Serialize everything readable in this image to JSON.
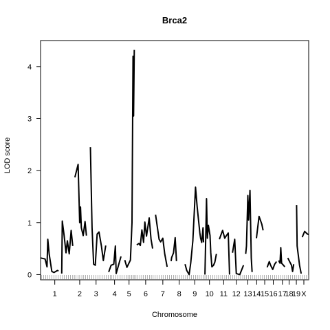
{
  "chart_data": {
    "type": "line",
    "title": "Brca2",
    "xlabel": "Chromosome",
    "ylabel": "LOD score",
    "ylim": [
      -0.1,
      4.5
    ],
    "yticks": [
      0,
      1,
      2,
      3,
      4
    ],
    "xlim": [
      0,
      100
    ],
    "grid": false,
    "chromosomes": [
      {
        "name": "1",
        "range": [
          1,
          10
        ],
        "label_pos": 5.3
      },
      {
        "name": "2",
        "range": [
          11,
          18
        ],
        "label_pos": 14.6
      },
      {
        "name": "3",
        "range": [
          19,
          25
        ],
        "label_pos": 20.7
      },
      {
        "name": "4",
        "range": [
          26,
          33
        ],
        "label_pos": 27.6
      },
      {
        "name": "5",
        "range": [
          34,
          38
        ],
        "label_pos": 33.0
      },
      {
        "name": "6",
        "range": [
          39,
          44
        ],
        "label_pos": 39.2
      },
      {
        "name": "7",
        "range": [
          45,
          51
        ],
        "label_pos": 45.6
      },
      {
        "name": "8",
        "range": [
          52,
          56
        ],
        "label_pos": 51.7
      },
      {
        "name": "9",
        "range": [
          57,
          60
        ],
        "label_pos": 57.5
      },
      {
        "name": "10",
        "range": [
          61,
          66
        ],
        "label_pos": 63.0
      },
      {
        "name": "11",
        "range": [
          67,
          70
        ],
        "label_pos": 68.3
      },
      {
        "name": "12",
        "range": [
          71,
          75
        ],
        "label_pos": 73.0
      },
      {
        "name": "13",
        "range": [
          75,
          78
        ],
        "label_pos": 77.3
      },
      {
        "name": "14",
        "range": [
          78,
          82
        ],
        "label_pos": 80.6
      },
      {
        "name": "15",
        "range": [
          82,
          85
        ],
        "label_pos": 83.6
      },
      {
        "name": "16",
        "range": [
          85,
          89
        ],
        "label_pos": 86.8
      },
      {
        "name": "17",
        "range": [
          89,
          93
        ],
        "label_pos": 90.2
      },
      {
        "name": "18",
        "range": [
          92,
          95
        ],
        "label_pos": 92.7
      },
      {
        "name": "19",
        "range": [
          95,
          97
        ],
        "label_pos": 95.4
      },
      {
        "name": "X",
        "range": [
          97,
          100
        ],
        "label_pos": 98.2
      }
    ],
    "series": [
      {
        "values": [
          [
            0.0,
            0.32
          ],
          [
            1.7,
            0.3
          ],
          [
            2.4,
            0.15
          ],
          [
            2.7,
            0.68
          ],
          [
            3.2,
            0.4
          ],
          [
            4.2,
            0.06
          ],
          [
            5.0,
            0.04
          ],
          [
            6.3,
            0.08
          ],
          [
            6.7,
            0.07
          ]
        ]
      },
      {
        "values": [
          [
            7.9,
            0.02
          ],
          [
            8.1,
            1.03
          ],
          [
            8.8,
            0.75
          ],
          [
            9.5,
            0.42
          ],
          [
            10.0,
            0.65
          ],
          [
            10.7,
            0.4
          ],
          [
            11.4,
            0.85
          ],
          [
            12.0,
            0.55
          ]
        ]
      },
      {
        "values": [
          [
            12.8,
            1.87
          ],
          [
            14.0,
            2.12
          ],
          [
            14.6,
            1.0
          ],
          [
            14.9,
            1.3
          ],
          [
            15.2,
            0.9
          ],
          [
            15.9,
            0.75
          ],
          [
            16.6,
            1.02
          ],
          [
            17.1,
            0.75
          ]
        ]
      },
      {
        "values": [
          [
            18.6,
            2.45
          ],
          [
            19.2,
            0.9
          ],
          [
            19.8,
            0.2
          ],
          [
            20.4,
            0.18
          ],
          [
            21.1,
            0.78
          ],
          [
            21.8,
            0.82
          ],
          [
            22.7,
            0.55
          ],
          [
            23.4,
            0.27
          ],
          [
            24.3,
            0.56
          ]
        ]
      },
      {
        "values": [
          [
            25.4,
            0.05
          ],
          [
            26.3,
            0.18
          ],
          [
            27.3,
            0.2
          ],
          [
            27.9,
            0.55
          ],
          [
            28.2,
            0.02
          ],
          [
            30.0,
            0.35
          ]
        ]
      },
      {
        "values": [
          [
            31.4,
            0.28
          ],
          [
            32.2,
            0.14
          ],
          [
            33.5,
            0.28
          ],
          [
            34.1,
            1.0
          ],
          [
            34.5,
            4.2
          ],
          [
            34.7,
            3.05
          ],
          [
            34.95,
            4.32
          ]
        ]
      },
      {
        "values": [
          [
            35.9,
            0.57
          ],
          [
            36.7,
            0.6
          ],
          [
            37.2,
            0.56
          ],
          [
            37.8,
            0.86
          ],
          [
            38.4,
            0.62
          ],
          [
            38.9,
            1.01
          ],
          [
            39.5,
            0.74
          ],
          [
            40.5,
            1.09
          ],
          [
            41.2,
            0.68
          ],
          [
            41.8,
            0.5
          ]
        ]
      },
      {
        "values": [
          [
            42.9,
            1.15
          ],
          [
            44.2,
            0.68
          ],
          [
            44.8,
            0.63
          ],
          [
            45.6,
            0.7
          ],
          [
            46.3,
            0.4
          ],
          [
            47.2,
            0.15
          ]
        ]
      },
      {
        "values": [
          [
            48.7,
            0.26
          ],
          [
            48.9,
            0.33
          ],
          [
            49.6,
            0.42
          ],
          [
            50.2,
            0.71
          ],
          [
            50.7,
            0.26
          ]
        ]
      },
      {
        "values": [
          [
            53.9,
            0.2
          ],
          [
            54.5,
            0.08
          ],
          [
            55.4,
            0.0
          ],
          [
            56.0,
            0.22
          ],
          [
            56.8,
            0.65
          ],
          [
            57.8,
            1.68
          ],
          [
            58.4,
            1.3
          ],
          [
            59.4,
            0.8
          ],
          [
            59.7,
            0.7
          ],
          [
            60.1,
            0.62
          ],
          [
            60.6,
            0.9
          ],
          [
            60.8,
            0.62
          ]
        ]
      },
      {
        "values": [
          [
            61.3,
            0.0
          ],
          [
            61.9,
            1.46
          ],
          [
            62.2,
            0.7
          ],
          [
            62.6,
            0.95
          ],
          [
            63.2,
            0.75
          ],
          [
            63.5,
            0.42
          ],
          [
            63.9,
            0.15
          ],
          [
            64.5,
            0.18
          ],
          [
            65.0,
            0.24
          ],
          [
            65.6,
            0.4
          ]
        ]
      },
      {
        "values": [
          [
            66.7,
            0.68
          ],
          [
            67.9,
            0.85
          ],
          [
            68.7,
            0.7
          ],
          [
            69.3,
            0.75
          ],
          [
            70.0,
            0.8
          ],
          [
            70.5,
            0.0
          ]
        ]
      },
      {
        "values": [
          [
            71.6,
            0.42
          ],
          [
            72.4,
            0.68
          ],
          [
            73.0,
            0.02
          ],
          [
            74.3,
            0.0
          ],
          [
            75.7,
            0.18
          ]
        ]
      },
      {
        "values": [
          [
            76.5,
            0.4
          ],
          [
            76.8,
            0.55
          ],
          [
            77.3,
            1.52
          ],
          [
            77.6,
            1.05
          ],
          [
            78.1,
            1.62
          ],
          [
            78.6,
            0.32
          ],
          [
            78.9,
            0.05
          ]
        ]
      },
      {
        "values": [
          [
            80.5,
            0.7
          ],
          [
            81.5,
            1.12
          ],
          [
            82.5,
            0.97
          ],
          [
            83.0,
            0.85
          ]
        ]
      },
      {
        "values": [
          [
            84.5,
            0.14
          ],
          [
            85.3,
            0.25
          ],
          [
            85.8,
            0.18
          ],
          [
            86.6,
            0.1
          ],
          [
            87.3,
            0.2
          ],
          [
            88.0,
            0.25
          ]
        ]
      },
      {
        "values": [
          [
            88.8,
            0.27
          ],
          [
            89.3,
            0.22
          ],
          [
            89.6,
            0.52
          ],
          [
            89.9,
            0.22
          ],
          [
            90.6,
            0.18
          ],
          [
            91.1,
            0.15
          ]
        ]
      },
      {
        "values": [
          [
            92.2,
            0.32
          ],
          [
            93.0,
            0.24
          ],
          [
            93.6,
            0.18
          ],
          [
            94.0,
            0.06
          ],
          [
            94.4,
            0.2
          ]
        ]
      },
      {
        "values": [
          [
            95.5,
            1.34
          ],
          [
            95.7,
            0.55
          ],
          [
            96.6,
            0.18
          ],
          [
            97.2,
            0.02
          ]
        ]
      },
      {
        "values": [
          [
            97.6,
            0.72
          ],
          [
            98.5,
            0.83
          ],
          [
            99.5,
            0.78
          ],
          [
            100.0,
            0.77
          ]
        ]
      }
    ]
  },
  "markers": [
    0.3,
    1.1,
    1.9,
    2.6,
    3.4,
    4.2,
    5.0,
    5.7,
    6.5,
    7.4,
    8.2,
    8.9,
    9.6,
    10.4,
    11.2,
    12.0,
    12.6,
    13.2,
    14.0,
    14.6,
    15.4,
    16.1,
    16.8,
    17.6,
    18.3,
    19.1,
    19.9,
    20.6,
    21.4,
    22.1,
    22.9,
    23.7,
    24.5,
    25.2,
    26.0,
    26.6,
    27.3,
    28.1,
    28.9,
    29.7,
    30.4,
    31.1,
    31.9,
    32.6,
    33.3,
    34.0,
    34.5,
    34.9,
    35.6,
    36.3,
    37.0,
    37.7,
    38.4,
    39.1,
    39.8,
    40.6,
    41.3,
    42.0,
    42.7,
    43.4,
    44.2,
    45.0,
    45.7,
    46.5,
    47.3,
    48.1,
    48.8,
    49.6,
    50.3,
    51.0,
    51.8,
    52.6,
    53.3,
    54.1,
    54.8,
    55.6,
    56.3,
    57.0,
    57.8,
    58.5,
    59.2,
    59.9,
    60.6,
    61.3,
    62.0,
    62.7,
    63.5,
    64.2,
    65.0,
    65.7,
    66.4,
    67.2,
    67.9,
    68.7,
    69.4,
    70.2,
    70.9,
    71.6,
    72.4,
    73.1,
    73.9,
    74.6,
    75.4,
    76.1,
    76.8,
    77.6,
    78.3,
    79.0,
    79.8,
    80.5,
    81.3,
    82.0,
    82.8,
    83.5,
    84.3,
    85.0,
    85.8,
    86.5,
    87.3,
    88.0,
    88.8,
    89.5,
    90.3,
    91.0,
    91.8,
    92.5,
    93.2,
    94.0,
    94.7,
    95.4,
    96.2,
    96.9,
    97.7,
    98.4,
    99.2,
    99.9
  ]
}
